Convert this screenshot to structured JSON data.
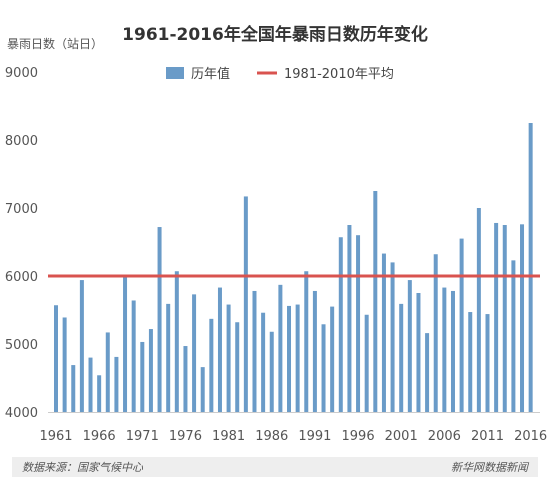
{
  "chart_data": {
    "type": "bar",
    "title": "1961-2016年全国年暴雨日数历年变化",
    "ylabel": "暴雨日数（站日）",
    "xlabel": "",
    "ylim": [
      4000,
      9000
    ],
    "y_ticks": [
      4000,
      5000,
      6000,
      7000,
      8000,
      9000
    ],
    "x_tick_labels": [
      1961,
      1966,
      1971,
      1976,
      1981,
      1986,
      1991,
      1996,
      2001,
      2006,
      2011,
      2016
    ],
    "grid": false,
    "legend_position": "top",
    "categories": [
      1961,
      1962,
      1963,
      1964,
      1965,
      1966,
      1967,
      1968,
      1969,
      1970,
      1971,
      1972,
      1973,
      1974,
      1975,
      1976,
      1977,
      1978,
      1979,
      1980,
      1981,
      1982,
      1983,
      1984,
      1985,
      1986,
      1987,
      1988,
      1989,
      1990,
      1991,
      1992,
      1993,
      1994,
      1995,
      1996,
      1997,
      1998,
      1999,
      2000,
      2001,
      2002,
      2003,
      2004,
      2005,
      2006,
      2007,
      2008,
      2009,
      2010,
      2011,
      2012,
      2013,
      2014,
      2015,
      2016
    ],
    "series": [
      {
        "name": "历年值",
        "color": "#6a9bc8",
        "values": [
          5570,
          5390,
          4690,
          5940,
          4800,
          4540,
          5170,
          4810,
          5980,
          5640,
          5030,
          5220,
          6720,
          5590,
          6070,
          4970,
          5730,
          4660,
          5370,
          5830,
          5580,
          5320,
          7170,
          5780,
          5460,
          5180,
          5870,
          5560,
          5580,
          6070,
          5780,
          5290,
          5550,
          6570,
          6750,
          6600,
          5430,
          7250,
          6330,
          6200,
          5590,
          5940,
          5750,
          5160,
          6320,
          5830,
          5780,
          6550,
          5470,
          7000,
          5440,
          6780,
          6750,
          6230,
          6760,
          8250
        ]
      }
    ],
    "reference_line": {
      "name": "1981-2010年平均",
      "value": 6000,
      "color": "#d9534f"
    }
  },
  "footer": {
    "source": "数据来源：国家气候中心",
    "credit": "新华网数据新闻"
  }
}
